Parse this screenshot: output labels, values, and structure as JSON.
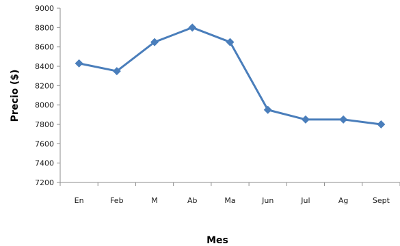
{
  "chart_data": {
    "type": "line",
    "title": "",
    "xlabel": "Mes",
    "ylabel": "Precio ($)",
    "categories": [
      "En",
      "Feb",
      "M",
      "Ab",
      "Ma",
      "Jun",
      "Jul",
      "Ag",
      "Sept"
    ],
    "series": [
      {
        "values": [
          8430,
          8350,
          8650,
          8800,
          8650,
          7950,
          7850,
          7850,
          7800
        ]
      }
    ],
    "ylim": [
      7200,
      9000
    ],
    "yticks": [
      7200,
      7400,
      7600,
      7800,
      8000,
      8200,
      8400,
      8600,
      8800,
      9000
    ],
    "grid": false,
    "legend": "none",
    "line_color": "#4a7ebb",
    "axis_color": "#8c8c8c",
    "marker": "diamond"
  }
}
